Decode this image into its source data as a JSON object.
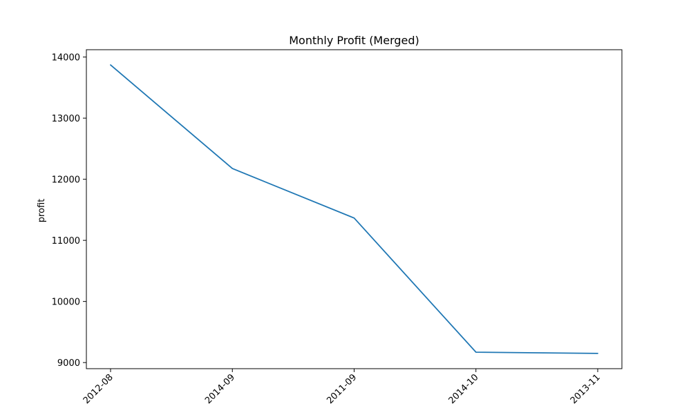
{
  "chart_data": {
    "type": "line",
    "title": "Monthly Profit (Merged)",
    "xlabel": "",
    "ylabel": "profit",
    "categories": [
      "2012-08",
      "2014-09",
      "2011-09",
      "2014-10",
      "2013-11"
    ],
    "series": [
      {
        "values": [
          13870,
          12175,
          11365,
          9170,
          9150
        ],
        "color": "#1f77b4"
      }
    ],
    "y_ticks": [
      9000,
      10000,
      11000,
      12000,
      13000,
      14000
    ],
    "y_tick_labels": [
      "9000",
      "10000",
      "11000",
      "12000",
      "13000",
      "14000"
    ],
    "ylim": [
      8900,
      14120
    ],
    "grid": false,
    "x_tick_rotation_deg": 45
  }
}
